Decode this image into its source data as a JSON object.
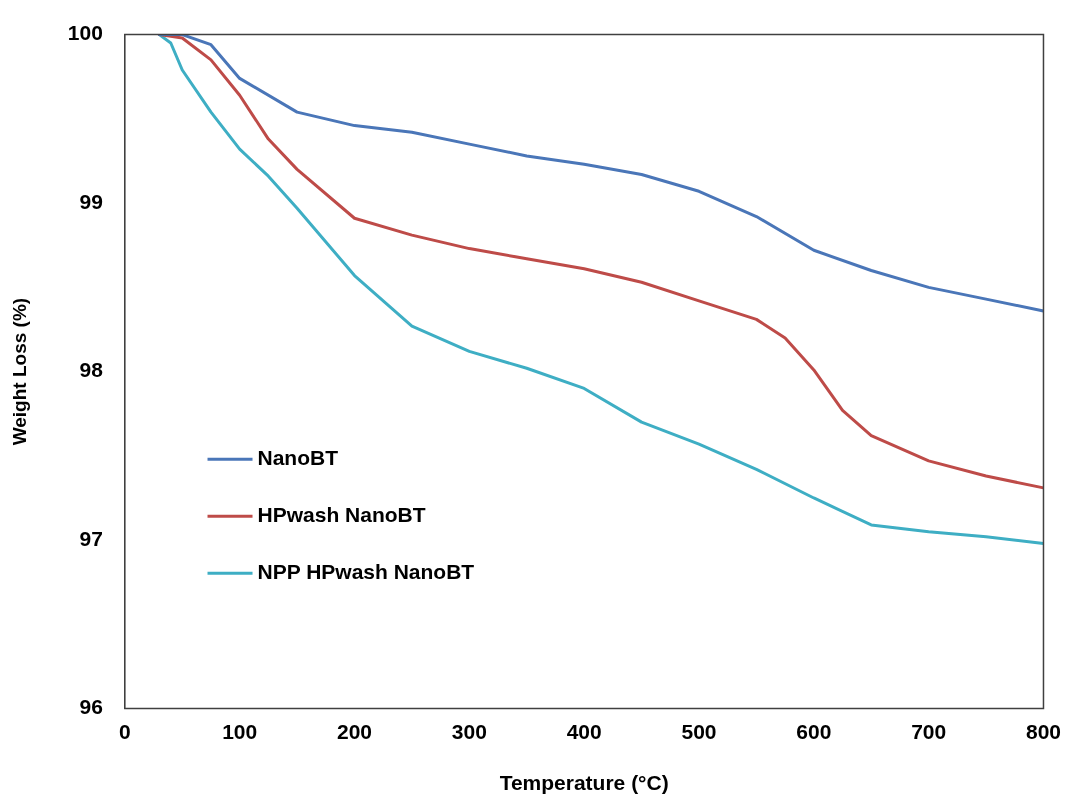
{
  "chart_data": {
    "type": "line",
    "xlabel": "Temperature (°C)",
    "ylabel": "Weight Loss (%)",
    "xlim": [
      0,
      800
    ],
    "xticks": [
      0,
      100,
      200,
      300,
      400,
      500,
      600,
      700,
      800
    ],
    "ylim": [
      96,
      100
    ],
    "yticks": [
      96,
      97,
      98,
      99,
      100
    ],
    "grid": false,
    "legend": "left",
    "marker": "none",
    "line_style": "solid",
    "series": [
      {
        "name": "NanoBT",
        "color": "#4a76b8",
        "x": [
          30,
          50,
          75,
          100,
          150,
          200,
          250,
          300,
          350,
          400,
          450,
          500,
          550,
          600,
          650,
          700,
          750,
          800
        ],
        "values": [
          100,
          100,
          99.94,
          99.74,
          99.54,
          99.46,
          99.42,
          99.35,
          99.28,
          99.23,
          99.17,
          99.07,
          98.92,
          98.72,
          98.6,
          98.5,
          98.43,
          98.36
        ]
      },
      {
        "name": "HPwash NanoBT",
        "color": "#be4b48",
        "x": [
          30,
          50,
          75,
          100,
          125,
          150,
          200,
          250,
          300,
          350,
          400,
          450,
          500,
          550,
          575,
          600,
          625,
          650,
          700,
          750,
          800
        ],
        "values": [
          100,
          99.98,
          99.85,
          99.64,
          99.38,
          99.2,
          98.91,
          98.81,
          98.73,
          98.67,
          98.61,
          98.53,
          98.42,
          98.31,
          98.2,
          98.01,
          97.77,
          97.62,
          97.47,
          97.38,
          97.31
        ]
      },
      {
        "name": "NPP HPwash NanoBT",
        "color": "#3eaec4",
        "x": [
          30,
          40,
          50,
          75,
          100,
          125,
          150,
          200,
          250,
          300,
          350,
          400,
          450,
          500,
          550,
          600,
          650,
          700,
          750,
          800
        ],
        "values": [
          100,
          99.95,
          99.79,
          99.54,
          99.32,
          99.16,
          98.97,
          98.57,
          98.27,
          98.12,
          98.02,
          97.9,
          97.7,
          97.57,
          97.42,
          97.25,
          97.09,
          97.05,
          97.02,
          96.98
        ]
      }
    ]
  }
}
